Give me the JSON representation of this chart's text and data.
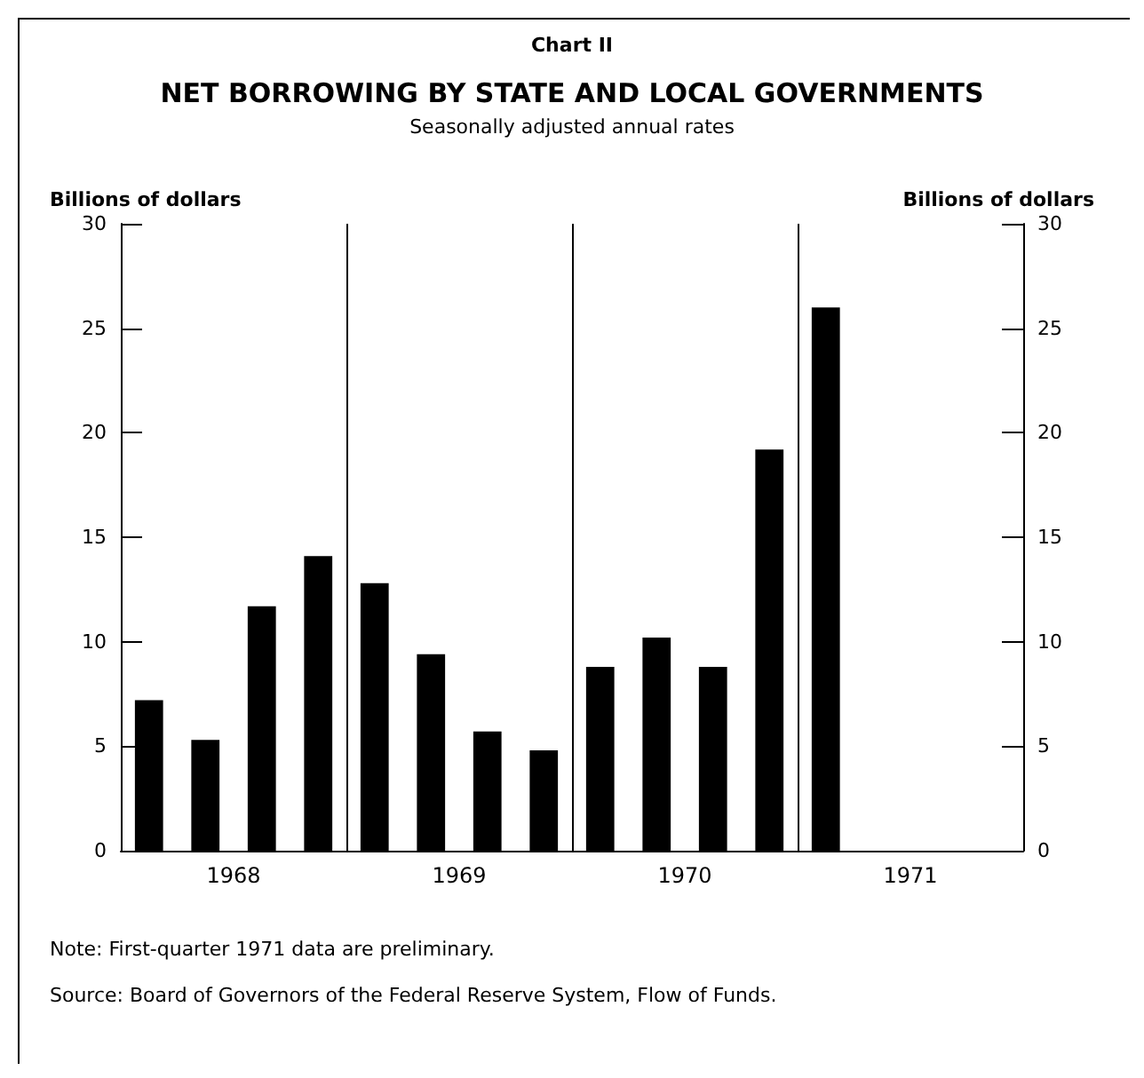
{
  "chart_data": {
    "type": "bar",
    "title": "NET BORROWING BY STATE AND LOCAL GOVERNMENTS",
    "subtitle": "Seasonally adjusted annual rates",
    "ylabel": "Billions of dollars",
    "y2label": "Billions of dollars",
    "x": [
      1968.125,
      1968.375,
      1968.625,
      1968.875,
      1969.125,
      1969.375,
      1969.625,
      1969.875,
      1970.125,
      1970.375,
      1970.625,
      1970.875,
      1971.125
    ],
    "values": [
      7.2,
      5.3,
      11.7,
      14.1,
      12.8,
      9.4,
      5.7,
      4.8,
      8.8,
      10.2,
      8.8,
      19.2,
      26.0
    ],
    "color": "#000000",
    "xlim": [
      1968,
      1972
    ],
    "xticks": [
      {
        "value": 1968.5,
        "label": "1968"
      },
      {
        "value": 1969.5,
        "label": "1969"
      },
      {
        "value": 1970.5,
        "label": "1970"
      },
      {
        "value": 1971.5,
        "label": "1971"
      }
    ],
    "ylim": [
      0,
      30
    ],
    "yticks": [
      0,
      5,
      10,
      15,
      20,
      25,
      30
    ],
    "y2lim": [
      0,
      30
    ],
    "y2ticks": [
      0,
      5,
      10,
      15,
      20,
      25,
      30
    ],
    "ref_lines": [
      {
        "axis": "x",
        "value": 1969
      },
      {
        "axis": "x",
        "value": 1970
      },
      {
        "axis": "x",
        "value": 1971
      }
    ],
    "grid": false,
    "annotations": [
      "Chart II",
      "Note: First-quarter 1971 data are preliminary.",
      "Source: Board of Governors of the Federal Reserve System, Flow of Funds."
    ]
  }
}
